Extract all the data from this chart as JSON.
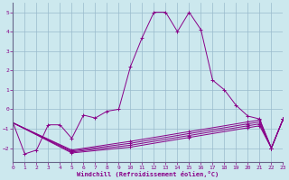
{
  "xlabel": "Windchill (Refroidissement éolien,°C)",
  "xlim": [
    0,
    23
  ],
  "ylim": [
    -2.7,
    5.5
  ],
  "xticks": [
    0,
    1,
    2,
    3,
    4,
    5,
    6,
    7,
    8,
    9,
    10,
    11,
    12,
    13,
    14,
    15,
    16,
    17,
    18,
    19,
    20,
    21,
    22,
    23
  ],
  "yticks": [
    -2,
    -1,
    0,
    1,
    2,
    3,
    4,
    5
  ],
  "bg_color": "#cce8ee",
  "line_color": "#880088",
  "grid_color": "#99bbcc",
  "figsize": [
    3.2,
    2.0
  ],
  "dpi": 100,
  "main_line_x": [
    0,
    1,
    2,
    3,
    4,
    5,
    6,
    7,
    8,
    9,
    10,
    11,
    12,
    13,
    14,
    15,
    16,
    17,
    18,
    19,
    20,
    21,
    22,
    23
  ],
  "main_line_y": [
    -0.7,
    -2.3,
    -2.1,
    -0.8,
    -0.8,
    -1.5,
    -0.3,
    -0.45,
    -0.1,
    0.0,
    2.2,
    3.7,
    5.0,
    5.0,
    4.0,
    5.0,
    4.1,
    1.5,
    1.0,
    0.2,
    -0.35,
    -0.5,
    -2.0,
    -0.5
  ],
  "flat_lines": [
    {
      "x": [
        0,
        1,
        2,
        3,
        4,
        5,
        6,
        7,
        8,
        9,
        10,
        11,
        12,
        13,
        14,
        15,
        16,
        17,
        18,
        19,
        20,
        21,
        22,
        23
      ],
      "y": [
        -0.7,
        -2.1,
        -2.1,
        -2.1,
        -2.1,
        -2.1,
        -2.0,
        -1.9,
        -1.8,
        -1.75,
        -1.65,
        -1.55,
        -1.45,
        -1.35,
        -1.25,
        -1.15,
        -1.05,
        -0.95,
        -0.85,
        -0.75,
        -0.65,
        -0.55,
        -2.0,
        -0.5
      ]
    },
    {
      "x": [
        0,
        23
      ],
      "y": [
        -0.7,
        -0.5
      ]
    },
    {
      "x": [
        0,
        23
      ],
      "y": [
        -0.8,
        -0.55
      ]
    },
    {
      "x": [
        0,
        23
      ],
      "y": [
        -0.9,
        -0.6
      ]
    }
  ],
  "smooth_lines": [
    {
      "x": [
        0,
        5,
        10,
        15,
        20,
        21,
        22,
        23
      ],
      "y": [
        -0.7,
        -2.1,
        -1.65,
        -1.15,
        -0.65,
        -0.55,
        -2.0,
        -0.5
      ]
    },
    {
      "x": [
        0,
        5,
        10,
        15,
        20,
        21,
        22,
        23
      ],
      "y": [
        -0.7,
        -2.15,
        -1.75,
        -1.25,
        -0.75,
        -0.65,
        -2.0,
        -0.5
      ]
    },
    {
      "x": [
        0,
        5,
        10,
        15,
        20,
        21,
        22,
        23
      ],
      "y": [
        -0.7,
        -2.2,
        -1.85,
        -1.35,
        -0.85,
        -0.75,
        -2.0,
        -0.5
      ]
    },
    {
      "x": [
        0,
        5,
        10,
        15,
        20,
        21,
        22,
        23
      ],
      "y": [
        -0.7,
        -2.25,
        -1.95,
        -1.45,
        -0.95,
        -0.85,
        -2.0,
        -0.5
      ]
    }
  ]
}
